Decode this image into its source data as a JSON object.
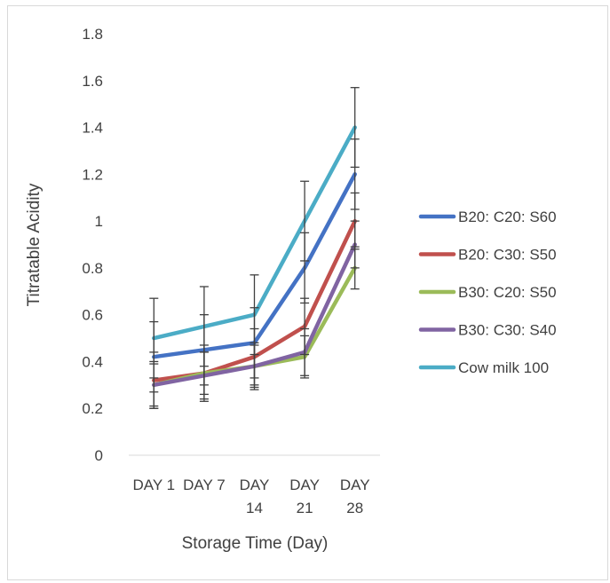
{
  "chart_data": {
    "type": "line",
    "title": "",
    "xlabel": "Storage Time (Day)",
    "ylabel": "Titratable Acidity",
    "categories": [
      [
        "DAY 1"
      ],
      [
        "DAY 7"
      ],
      [
        "DAY",
        "14"
      ],
      [
        "DAY",
        "21"
      ],
      [
        "DAY",
        "28"
      ]
    ],
    "ylim": [
      0,
      1.8
    ],
    "yticks": [
      "0",
      "0.2",
      "0.4",
      "0.6",
      "0.8",
      "1",
      "1.2",
      "1.4",
      "1.6",
      "1.8"
    ],
    "grid": false,
    "legend_position": "right",
    "series": [
      {
        "name": "B20: C20: S60",
        "color": "#4472c4",
        "values": [
          0.42,
          0.45,
          0.48,
          0.8,
          1.2
        ],
        "err": [
          0.15,
          0.15,
          0.15,
          0.15,
          0.15
        ]
      },
      {
        "name": "B20: C30: S50",
        "color": "#c0504d",
        "values": [
          0.32,
          0.35,
          0.42,
          0.55,
          1.0
        ],
        "err": [
          0.12,
          0.12,
          0.12,
          0.12,
          0.12
        ]
      },
      {
        "name": "B30: C20: S50",
        "color": "#9bbb59",
        "values": [
          0.3,
          0.35,
          0.38,
          0.42,
          0.8
        ],
        "err": [
          0.09,
          0.09,
          0.09,
          0.09,
          0.09
        ]
      },
      {
        "name": "B30: C30: S40",
        "color": "#8064a2",
        "values": [
          0.3,
          0.34,
          0.38,
          0.44,
          0.9
        ],
        "err": [
          0.1,
          0.1,
          0.1,
          0.1,
          0.1
        ]
      },
      {
        "name": "Cow milk 100",
        "color": "#4bacc6",
        "values": [
          0.5,
          0.55,
          0.6,
          1.0,
          1.4
        ],
        "err": [
          0.17,
          0.17,
          0.17,
          0.17,
          0.17
        ]
      }
    ]
  }
}
